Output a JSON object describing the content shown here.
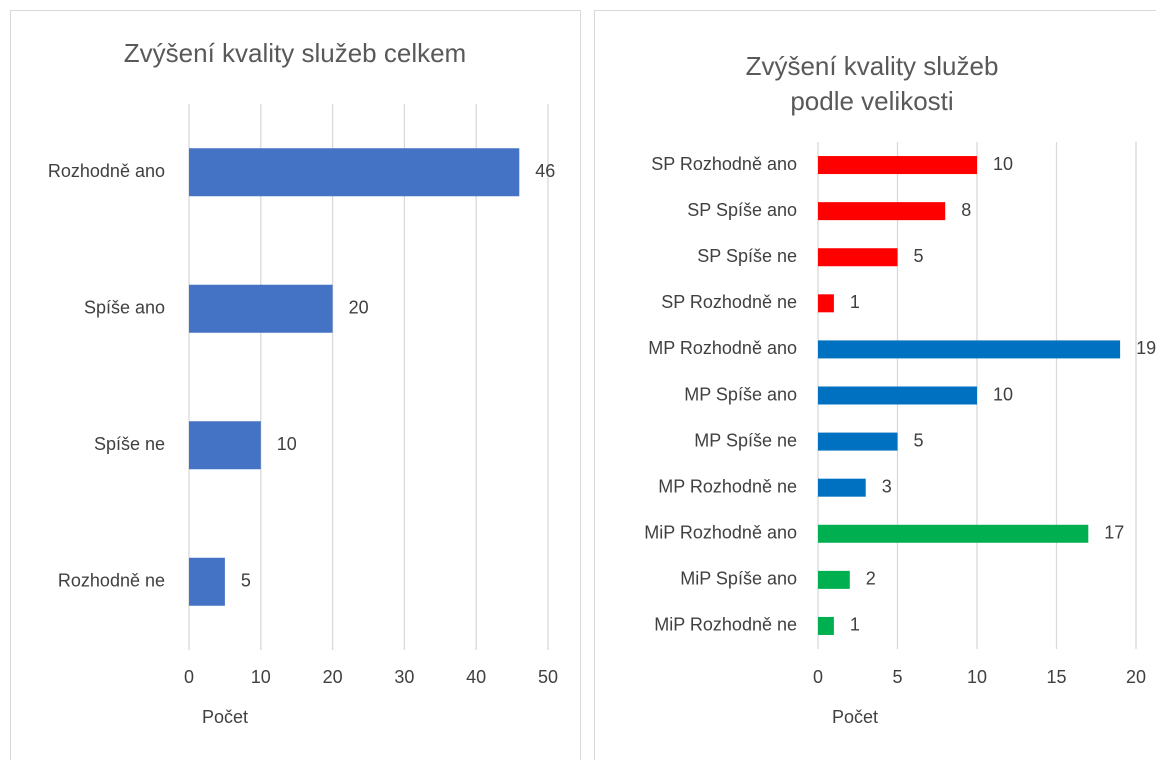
{
  "chart_data": [
    {
      "type": "barh",
      "title": [
        "Zvýšení kvality služeb celkem"
      ],
      "categories": [
        "Rozhodně ano",
        "Spíše ano",
        "Spíše ne",
        "Rozhodně ne"
      ],
      "values": [
        46,
        20,
        10,
        5
      ],
      "color": "#4472c4",
      "xlim": [
        0,
        50
      ],
      "xticks": [
        0,
        10,
        20,
        30,
        40,
        50
      ],
      "xlabel": "Počet",
      "grid": true
    },
    {
      "type": "barh",
      "title": [
        "Zvýšení kvality služeb",
        "podle velikosti"
      ],
      "categories": [
        "SP Rozhodně ano",
        "SP Spíše ano",
        "SP Spíše ne",
        "SP Rozhodně ne",
        "MP Rozhodně ano",
        "MP Spíše ano",
        "MP Spíše ne",
        "MP Rozhodně ne",
        "MiP Rozhodně ano",
        "MiP Spíše ano",
        "MiP Rozhodně ne"
      ],
      "values": [
        10,
        8,
        5,
        1,
        19,
        10,
        5,
        3,
        17,
        2,
        1
      ],
      "colors": [
        "#ff0000",
        "#ff0000",
        "#ff0000",
        "#ff0000",
        "#0070c0",
        "#0070c0",
        "#0070c0",
        "#0070c0",
        "#00b050",
        "#00b050",
        "#00b050"
      ],
      "xlim": [
        0,
        20
      ],
      "xticks": [
        0,
        5,
        10,
        15,
        20
      ],
      "xlabel": "Počet",
      "grid": true
    }
  ]
}
